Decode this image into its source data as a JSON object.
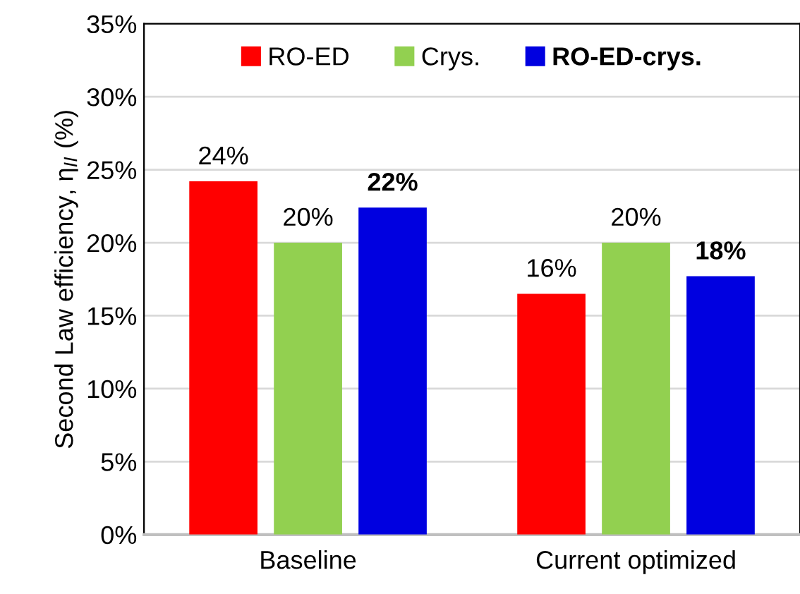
{
  "chart_data": {
    "type": "bar",
    "ylabel": "Second Law efficiency, η$_{II}$ (%)",
    "categories": [
      "Baseline",
      "Current optimized"
    ],
    "series": [
      {
        "name": "RO-ED",
        "color": "#ff0000",
        "values": [
          24.2,
          16.5
        ],
        "value_labels": [
          "24%",
          "16%"
        ]
      },
      {
        "name": "Crys.",
        "color": "#92d050",
        "values": [
          20.0,
          20.0
        ],
        "value_labels": [
          "20%",
          "20%"
        ]
      },
      {
        "name": "RO-ED-crys.",
        "color": "#0000e0",
        "values": [
          22.4,
          17.7
        ],
        "value_labels": [
          "22%",
          "18%"
        ]
      }
    ],
    "ylim": [
      0,
      35
    ],
    "yticks": [
      {
        "value": 0,
        "label": "0%"
      },
      {
        "value": 5,
        "label": "5%"
      },
      {
        "value": 10,
        "label": "10%"
      },
      {
        "value": 15,
        "label": "15%"
      },
      {
        "value": 20,
        "label": "20%"
      },
      {
        "value": 25,
        "label": "25%"
      },
      {
        "value": 30,
        "label": "30%"
      },
      {
        "value": 35,
        "label": "35%"
      }
    ],
    "grid": "y",
    "legend": "top"
  }
}
